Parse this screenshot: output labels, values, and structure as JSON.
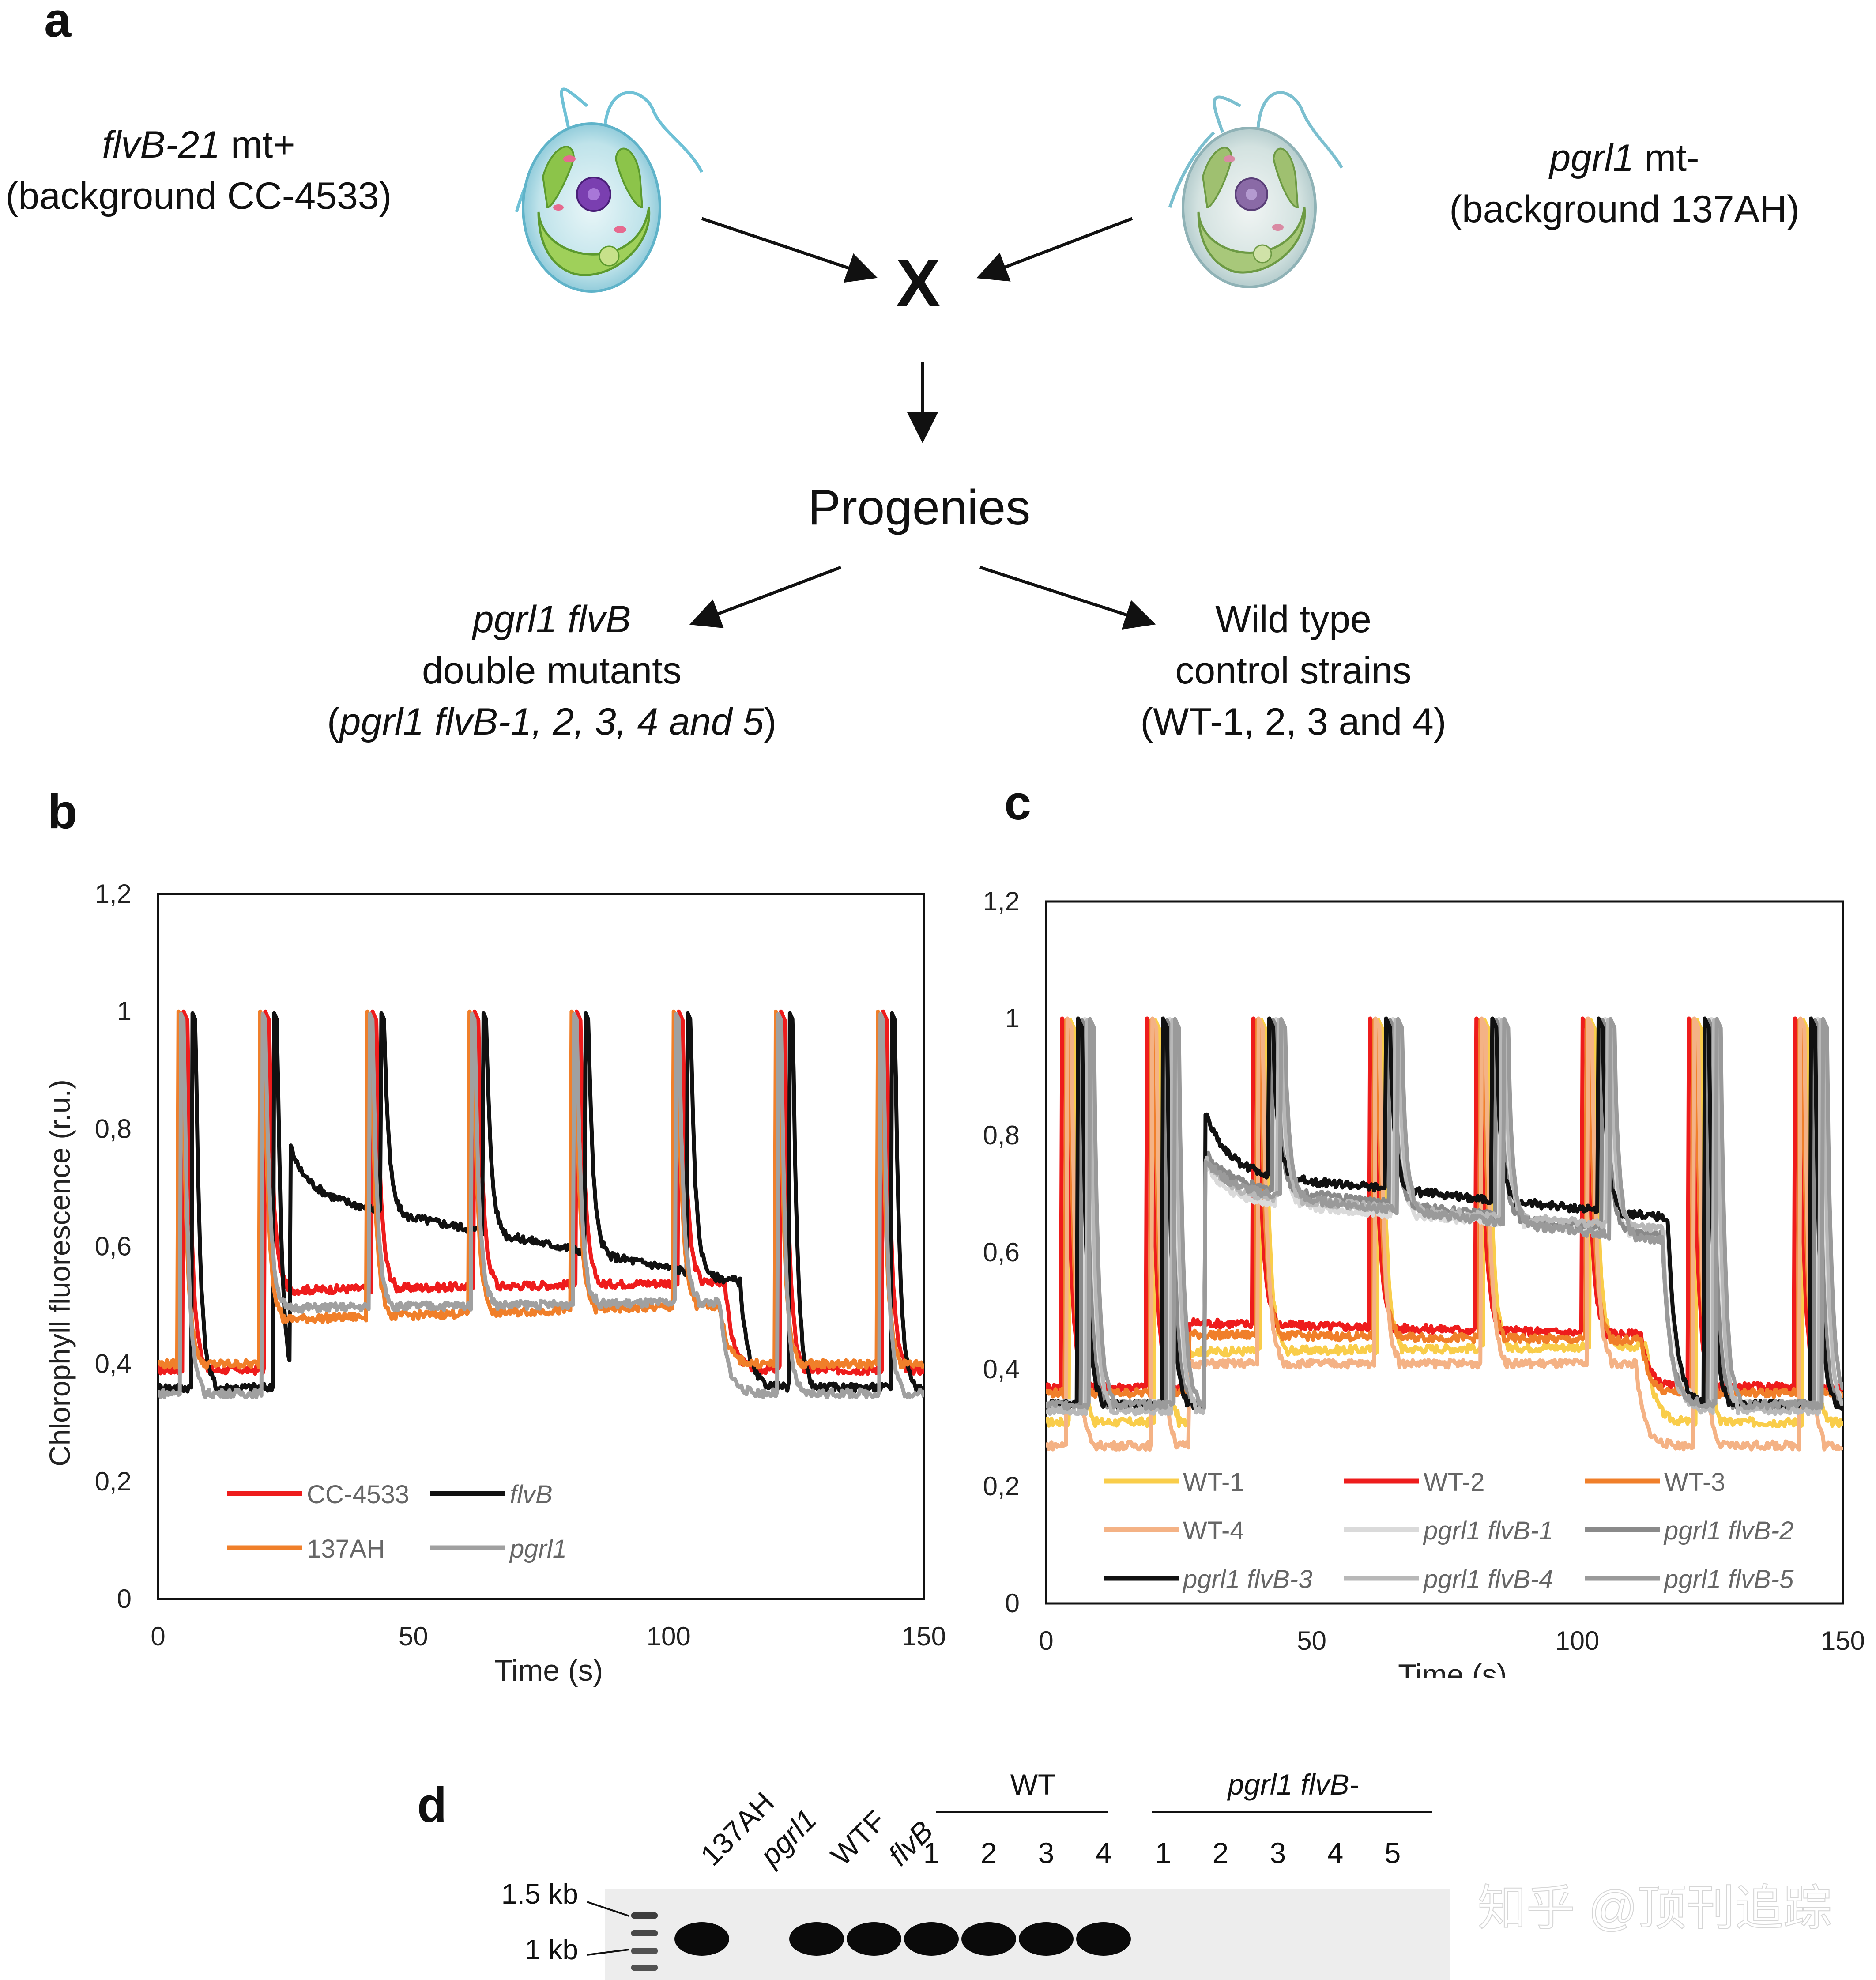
{
  "panel_a": {
    "letter": "a",
    "left_parent": {
      "strain": "flvB-21",
      "mating": " mt+",
      "background": "(background CC-4533)"
    },
    "right_parent": {
      "strain": "pgrl1",
      "mating": " mt-",
      "background": "(background 137AH)"
    },
    "cross_symbol": "X",
    "progenies": "Progenies",
    "left_child": {
      "line1": "pgrl1 flvB",
      "line2": "double mutants",
      "line3_open": "(",
      "line3_italic": "pgrl1 flvB-1, 2, 3, 4 and 5",
      "line3_close": ")"
    },
    "right_child": {
      "line1": "Wild type",
      "line2": "control strains",
      "line3": "(WT-1, 2, 3 and 4)"
    }
  },
  "panel_b": {
    "letter": "b"
  },
  "panel_c": {
    "letter": "c"
  },
  "panel_d": {
    "letter": "d",
    "lane_labels": [
      "137AH",
      "pgrl1",
      "WTF",
      "flvB"
    ],
    "wt_group_label": "WT",
    "wt_numbers": [
      "1",
      "2",
      "3",
      "4"
    ],
    "mutant_group_label": "pgrl1 flvB-",
    "mutant_numbers": [
      "1",
      "2",
      "3",
      "4",
      "5"
    ],
    "marker_labels": [
      "1.5 kb",
      "1 kb"
    ],
    "band_present": [
      true,
      false,
      true,
      true,
      true,
      true,
      true,
      true,
      false,
      false,
      false,
      false,
      false
    ]
  },
  "watermark": "知乎 @顶刊追踪",
  "chart_data": [
    {
      "type": "line",
      "panel": "b",
      "xlabel": "Time (s)",
      "ylabel": "Chlorophyll fluorescence (r.u.)",
      "xlim": [
        0,
        150
      ],
      "ylim": [
        0,
        1.2
      ],
      "xticks": [
        "0",
        "50",
        "100",
        "150"
      ],
      "yticks": [
        "0",
        "0,2",
        "0,4",
        "0,6",
        "0,8",
        "1",
        "1,2"
      ],
      "legend": "bottom-left",
      "series": [
        {
          "name": "CC-4533",
          "italic": false,
          "color": "#ee1c1c",
          "baseline": 0.39,
          "plateau": 0.525,
          "plateau_end": 0.54,
          "light_on": 21,
          "light_off": 111,
          "flash_offset": 1.0,
          "decay": 0,
          "decay_peak": 0
        },
        {
          "name": "flvB",
          "italic": true,
          "color": "#111111",
          "baseline": 0.36,
          "plateau": 0.69,
          "plateau_end": 0.54,
          "light_on": 26,
          "light_off": 114,
          "flash_offset": 2.6,
          "decay": 0.08,
          "decay_peak": 0.76
        },
        {
          "name": "137AH",
          "italic": false,
          "color": "#f07f2a",
          "baseline": 0.4,
          "plateau": 0.475,
          "plateau_end": 0.5,
          "light_on": 21,
          "light_off": 110,
          "flash_offset": 0.0,
          "decay": 0,
          "decay_peak": 0
        },
        {
          "name": "pgrl1",
          "italic": true,
          "color": "#a0a0a0",
          "baseline": 0.35,
          "plateau": 0.495,
          "plateau_end": 0.505,
          "light_on": 21,
          "light_off": 110,
          "flash_offset": 0.3,
          "decay": 0,
          "decay_peak": 0
        }
      ],
      "flash_times": [
        4,
        20,
        41,
        61,
        81,
        101,
        121,
        141
      ]
    },
    {
      "type": "line",
      "panel": "c",
      "xlabel": "Time (s)",
      "ylabel": "",
      "xlim": [
        0,
        150
      ],
      "ylim": [
        0,
        1.2
      ],
      "xticks": [
        "0",
        "50",
        "100",
        "150"
      ],
      "yticks": [
        "0",
        "0,2",
        "0,4",
        "0,6",
        "0,8",
        "1",
        "1,2"
      ],
      "legend": "bottom",
      "series": [
        {
          "name": "WT-1",
          "italic": false,
          "color": "#f9cd4a",
          "baseline": 0.31,
          "plateau": 0.43,
          "plateau_end": 0.44,
          "light_on": 27,
          "light_off": 113,
          "flash_offset": 1.4,
          "decay": 0,
          "decay_peak": 0
        },
        {
          "name": "WT-2",
          "italic": false,
          "color": "#ee1c1c",
          "baseline": 0.37,
          "plateau": 0.48,
          "plateau_end": 0.46,
          "light_on": 27,
          "light_off": 112,
          "flash_offset": 0.0,
          "decay": 0,
          "decay_peak": 0
        },
        {
          "name": "WT-3",
          "italic": false,
          "color": "#f07f2a",
          "baseline": 0.36,
          "plateau": 0.46,
          "plateau_end": 0.45,
          "light_on": 27,
          "light_off": 112,
          "flash_offset": 0.6,
          "decay": 0,
          "decay_peak": 0
        },
        {
          "name": "WT-4",
          "italic": false,
          "color": "#f4b285",
          "baseline": 0.27,
          "plateau": 0.41,
          "plateau_end": 0.41,
          "light_on": 27,
          "light_off": 111,
          "flash_offset": 1.0,
          "decay": 0,
          "decay_peak": 0
        },
        {
          "name": "pgrl1 flvB-1",
          "italic": true,
          "color": "#dadada",
          "baseline": 0.34,
          "plateau": 0.69,
          "plateau_end": 0.63,
          "light_on": 30,
          "light_off": 117,
          "flash_offset": 4.2,
          "decay": 0.04,
          "decay_peak": 0.75
        },
        {
          "name": "pgrl1 flvB-2",
          "italic": true,
          "color": "#8a8a8a",
          "baseline": 0.34,
          "plateau": 0.72,
          "plateau_end": 0.63,
          "light_on": 30,
          "light_off": 116,
          "flash_offset": 3.6,
          "decay": 0.06,
          "decay_peak": 0.77
        },
        {
          "name": "pgrl1 flvB-3",
          "italic": true,
          "color": "#111111",
          "baseline": 0.34,
          "plateau": 0.74,
          "plateau_end": 0.66,
          "light_on": 30,
          "light_off": 117,
          "flash_offset": 3.0,
          "decay": 0.1,
          "decay_peak": 0.84
        },
        {
          "name": "pgrl1 flvB-4",
          "italic": true,
          "color": "#b8b8b8",
          "baseline": 0.33,
          "plateau": 0.7,
          "plateau_end": 0.64,
          "light_on": 30,
          "light_off": 116,
          "flash_offset": 4.6,
          "decay": 0.05,
          "decay_peak": 0.76
        },
        {
          "name": "pgrl1 flvB-5",
          "italic": true,
          "color": "#9a9a9a",
          "baseline": 0.34,
          "plateau": 0.71,
          "plateau_end": 0.62,
          "light_on": 30,
          "light_off": 116,
          "flash_offset": 5.2,
          "decay": 0.05,
          "decay_peak": 0.76
        }
      ],
      "flash_times": [
        3,
        19,
        39,
        61,
        81,
        101,
        121,
        141
      ]
    }
  ]
}
